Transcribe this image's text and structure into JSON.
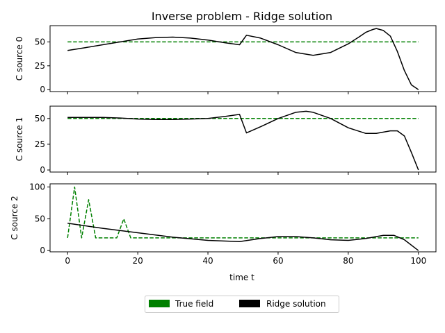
{
  "chart_data": {
    "type": "line",
    "title": "Inverse problem - Ridge solution",
    "xlabel": "time t",
    "xlim": [
      -5,
      105
    ],
    "xticks": [
      0,
      20,
      40,
      60,
      80,
      100
    ],
    "legend": {
      "placement": "bottom-center",
      "entries": [
        {
          "label": "True field",
          "color": "#008000"
        },
        {
          "label": "Ridge solution",
          "color": "#000000"
        }
      ]
    },
    "subplots": [
      {
        "ylabel": "C source 0",
        "ylim": [
          -2,
          67
        ],
        "yticks": [
          0,
          25,
          50
        ],
        "series": [
          {
            "name": "True field",
            "style": "dashed",
            "color": "#008000",
            "x": [
              0,
              100
            ],
            "y": [
              50,
              50
            ]
          },
          {
            "name": "Ridge solution",
            "style": "solid",
            "color": "#000000",
            "x": [
              0,
              5,
              10,
              15,
              20,
              25,
              30,
              35,
              40,
              45,
              49,
              51,
              55,
              60,
              65,
              70,
              75,
              80,
              83,
              85,
              87,
              88,
              90,
              92,
              94,
              96,
              98,
              100
            ],
            "y": [
              41,
              44,
              47,
              50,
              53,
              54.5,
              55,
              54,
              52,
              49,
              47,
              57,
              54,
              47,
              39,
              36,
              39,
              48,
              55,
              60,
              63,
              64,
              62,
              56,
              40,
              20,
              5,
              0
            ]
          }
        ]
      },
      {
        "ylabel": "C source 1",
        "ylim": [
          -2,
          62
        ],
        "yticks": [
          0,
          25,
          50
        ],
        "series": [
          {
            "name": "True field",
            "style": "dashed",
            "color": "#008000",
            "x": [
              0,
              100
            ],
            "y": [
              50,
              50
            ]
          },
          {
            "name": "Ridge solution",
            "style": "solid",
            "color": "#000000",
            "x": [
              0,
              5,
              10,
              15,
              20,
              25,
              30,
              35,
              40,
              45,
              49,
              51,
              55,
              60,
              65,
              68,
              70,
              75,
              80,
              85,
              88,
              92,
              94,
              96,
              98,
              100
            ],
            "y": [
              51,
              51,
              51,
              50.5,
              49.5,
              49,
              49,
              49.5,
              50,
              52,
              54,
              36,
              42,
              50,
              56,
              57,
              56,
              50,
              41,
              35.5,
              35.5,
              38,
              38,
              33,
              17,
              0
            ]
          }
        ]
      },
      {
        "ylabel": "C source 2",
        "ylim": [
          -2,
          105
        ],
        "yticks": [
          0,
          50,
          100
        ],
        "series": [
          {
            "name": "True field",
            "style": "dashed",
            "color": "#008000",
            "x": [
              0,
              2,
              4,
              6,
              8,
              10,
              12,
              14,
              16,
              18,
              20,
              40,
              60,
              80,
              100
            ],
            "y": [
              20,
              100,
              20,
              80,
              20,
              20,
              20,
              20,
              50,
              20,
              20,
              20,
              20,
              20,
              20
            ]
          },
          {
            "name": "Ridge solution",
            "style": "solid",
            "color": "#000000",
            "x": [
              0,
              10,
              20,
              30,
              40,
              49,
              55,
              60,
              65,
              70,
              75,
              80,
              85,
              90,
              93,
              96,
              100
            ],
            "y": [
              43,
              35,
              28,
              21,
              16,
              14,
              19,
              22,
              22,
              20,
              17,
              16,
              19,
              24,
              24,
              17,
              0
            ]
          }
        ]
      }
    ]
  }
}
